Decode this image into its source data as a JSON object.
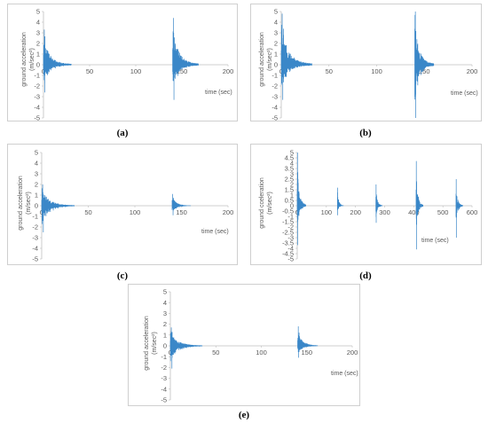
{
  "chart_data": [
    {
      "type": "line",
      "panel": "a",
      "caption": "(a)",
      "ylabel_line1": "ground acceleration",
      "ylabel_line2": "(m/sec²)",
      "xlabel": "time (sec)",
      "xlim": [
        0,
        200
      ],
      "ylim": [
        -5,
        5
      ],
      "xticks": [
        0,
        50,
        100,
        150,
        200
      ],
      "yticks": [
        5,
        4,
        3,
        2,
        1,
        0,
        -1,
        -2,
        -3,
        -4,
        -5
      ],
      "color": "#3a87c8",
      "series": [
        {
          "bursts": [
            {
              "start": 0,
              "end": 30,
              "peak_pos": 3.3,
              "peak_neg": -2.6
            },
            {
              "start": 140,
              "end": 168,
              "peak_pos": 4.4,
              "peak_neg": -3.3
            }
          ]
        }
      ]
    },
    {
      "type": "line",
      "panel": "b",
      "caption": "(b)",
      "ylabel_line1": "ground acceleration",
      "ylabel_line2": "(m/sec²)",
      "xlabel": "time (sec)",
      "xlim": [
        0,
        200
      ],
      "ylim": [
        -5,
        5
      ],
      "xticks": [
        0,
        50,
        100,
        150,
        200
      ],
      "yticks": [
        5,
        4,
        3,
        2,
        1,
        0,
        -1,
        -2,
        -3,
        -4,
        -5
      ],
      "color": "#3a87c8",
      "series": [
        {
          "bursts": [
            {
              "start": 0,
              "end": 32,
              "peak_pos": 4.8,
              "peak_neg": -3.3
            },
            {
              "start": 140,
              "end": 160,
              "peak_pos": 5.0,
              "peak_neg": -5.0
            }
          ]
        }
      ]
    },
    {
      "type": "line",
      "panel": "c",
      "caption": "(c)",
      "ylabel_line1": "ground acceleration",
      "ylabel_line2": "(m/sec²)",
      "xlabel": "time (sec)",
      "xlim": [
        0,
        200
      ],
      "ylim": [
        -5,
        5
      ],
      "xticks": [
        0,
        50,
        100,
        150,
        200
      ],
      "yticks": [
        5,
        4,
        3,
        2,
        1,
        0,
        -1,
        -2,
        -3,
        -4,
        -5
      ],
      "color": "#3a87c8",
      "series": [
        {
          "bursts": [
            {
              "start": 0,
              "end": 35,
              "peak_pos": 2.0,
              "peak_neg": -2.5
            },
            {
              "start": 140,
              "end": 160,
              "peak_pos": 1.1,
              "peak_neg": -0.9
            }
          ]
        }
      ]
    },
    {
      "type": "line",
      "panel": "d",
      "caption": "(d)",
      "ylabel_line1": "ground cceleration",
      "ylabel_line2": "(m/sec²)",
      "xlabel": "time (sec)",
      "xlim": [
        0,
        600
      ],
      "ylim": [
        -5,
        5
      ],
      "xticks": [
        0,
        100,
        200,
        300,
        400,
        500,
        600
      ],
      "yticks": [
        5,
        4.5,
        4,
        3.5,
        3,
        2.5,
        2,
        1.5,
        1,
        0.5,
        0,
        -0.5,
        -1,
        -1.5,
        -2,
        -2.5,
        -3,
        -3.5,
        -4,
        -4.5,
        -5
      ],
      "color": "#3a87c8",
      "series": [
        {
          "bursts": [
            {
              "start": 0,
              "end": 30,
              "peak_pos": 5.0,
              "peak_neg": -3.7
            },
            {
              "start": 138,
              "end": 158,
              "peak_pos": 1.7,
              "peak_neg": -0.9
            },
            {
              "start": 270,
              "end": 292,
              "peak_pos": 2.0,
              "peak_neg": -1.6
            },
            {
              "start": 408,
              "end": 432,
              "peak_pos": 4.2,
              "peak_neg": -4.1
            },
            {
              "start": 545,
              "end": 568,
              "peak_pos": 2.5,
              "peak_neg": -3.0
            }
          ]
        }
      ]
    },
    {
      "type": "line",
      "panel": "e",
      "caption": "(e)",
      "ylabel_line1": "ground acceleration",
      "ylabel_line2": "(m/sec²)",
      "xlabel": "time (sec)",
      "xlim": [
        0,
        200
      ],
      "ylim": [
        -5,
        5
      ],
      "xticks": [
        0,
        50,
        100,
        150,
        200
      ],
      "yticks": [
        5,
        4,
        3,
        2,
        1,
        0,
        -1,
        -2,
        -3,
        -4,
        -5
      ],
      "color": "#3a87c8",
      "series": [
        {
          "bursts": [
            {
              "start": 0,
              "end": 35,
              "peak_pos": 1.7,
              "peak_neg": -2.1
            },
            {
              "start": 140,
              "end": 162,
              "peak_pos": 1.8,
              "peak_neg": -1.1
            }
          ]
        }
      ]
    }
  ]
}
